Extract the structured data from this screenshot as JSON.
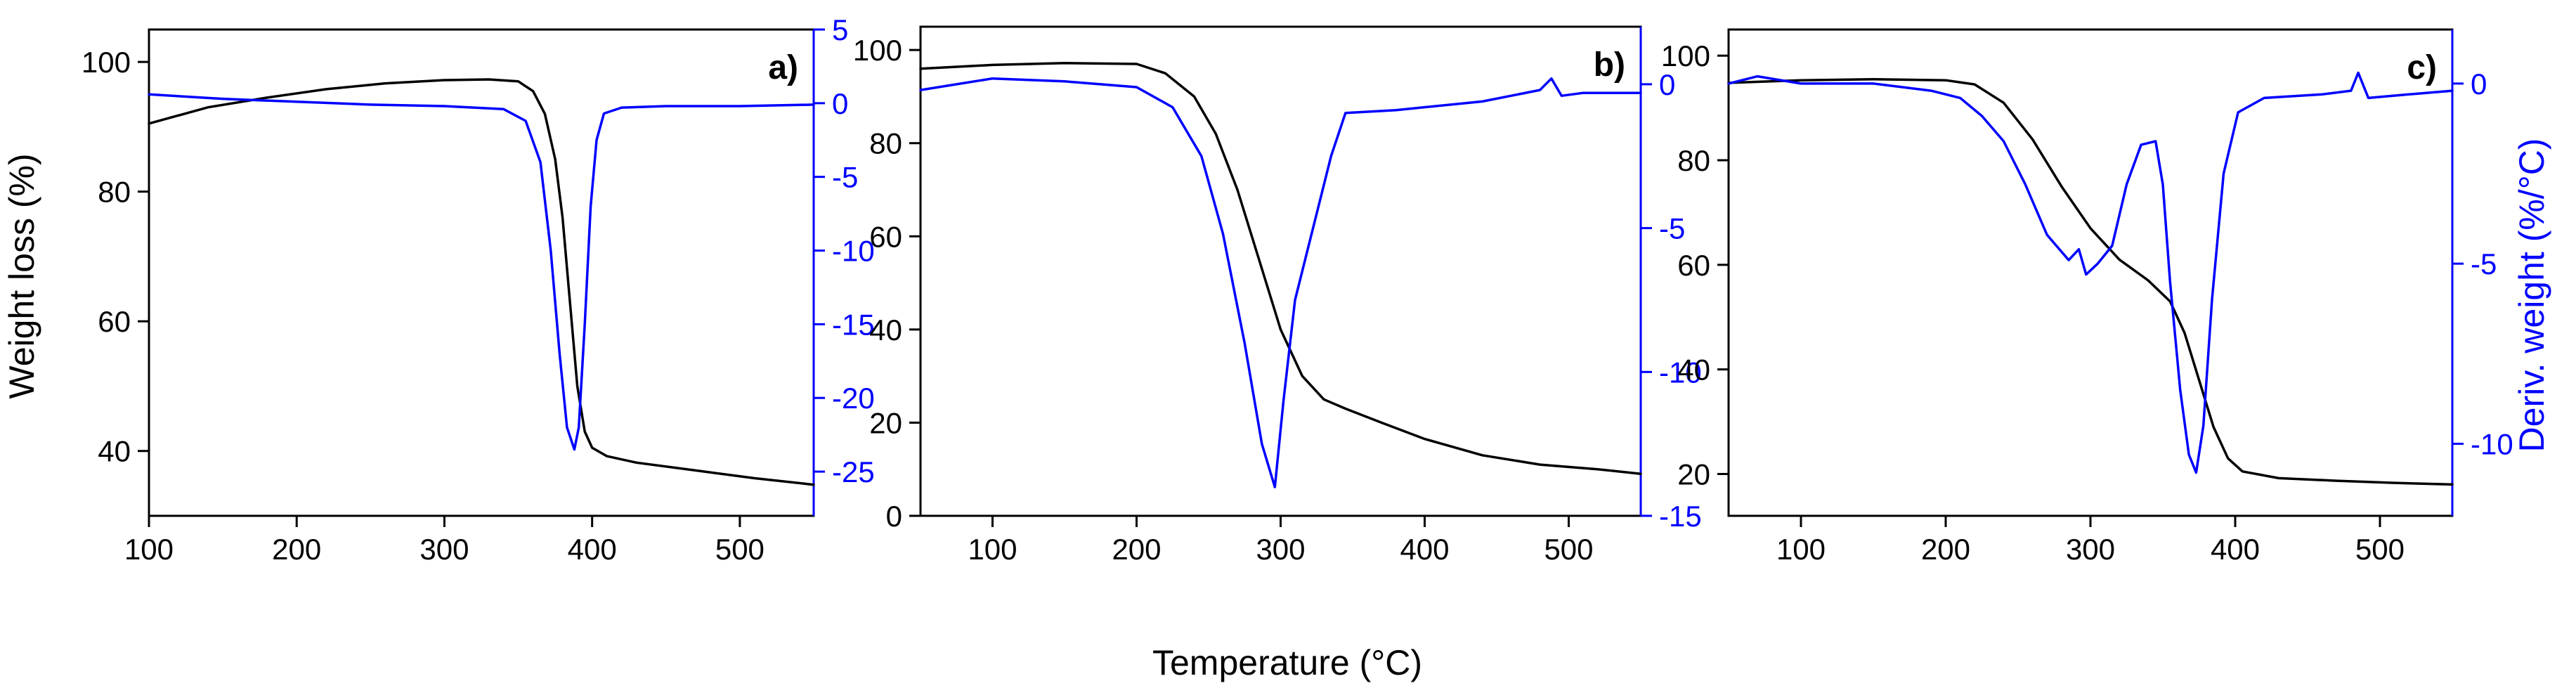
{
  "figure": {
    "shared_xlabel": "Temperature (°C)",
    "left_ylabel": "Weight loss (%)",
    "right_ylabel": "Deriv. weight (%/°C)"
  },
  "colors": {
    "weight": "#000000",
    "derivative": "#0000ff",
    "axis": "#000000"
  },
  "chart_data": [
    {
      "panel": "a)",
      "type": "line",
      "xlim": [
        100,
        550
      ],
      "xticks": [
        100,
        200,
        300,
        400,
        500
      ],
      "ylim_left": [
        30,
        105
      ],
      "yticks_left": [
        40,
        60,
        80,
        100
      ],
      "ylim_right": [
        -28,
        5
      ],
      "yticks_right": [
        5,
        0,
        -5,
        -10,
        -15,
        -20,
        -25
      ],
      "xlabel": "",
      "ylabel_left": "Weight loss (%)",
      "ylabel_right": "",
      "series": [
        {
          "name": "Weight loss",
          "axis": "left",
          "x": [
            100,
            140,
            180,
            220,
            260,
            300,
            330,
            350,
            360,
            368,
            375,
            380,
            385,
            390,
            395,
            400,
            410,
            430,
            470,
            510,
            550
          ],
          "y": [
            90.5,
            93,
            94.5,
            95.8,
            96.7,
            97.2,
            97.3,
            97,
            95.5,
            92,
            85,
            76,
            63,
            50,
            43,
            40.5,
            39.2,
            38.2,
            37,
            35.8,
            34.8
          ]
        },
        {
          "name": "Deriv. weight",
          "axis": "right",
          "x": [
            100,
            150,
            200,
            250,
            300,
            340,
            355,
            365,
            372,
            378,
            383,
            388,
            391,
            395,
            399,
            403,
            408,
            420,
            450,
            500,
            550
          ],
          "y": [
            0.6,
            0.3,
            0.1,
            -0.1,
            -0.2,
            -0.4,
            -1.2,
            -4,
            -10,
            -17,
            -22,
            -23.5,
            -22,
            -15,
            -7,
            -2.5,
            -0.7,
            -0.3,
            -0.2,
            -0.2,
            -0.1
          ]
        }
      ]
    },
    {
      "panel": "b)",
      "type": "line",
      "xlim": [
        50,
        550
      ],
      "xticks": [
        100,
        200,
        300,
        400,
        500
      ],
      "ylim_left": [
        0,
        105
      ],
      "yticks_left": [
        0,
        20,
        40,
        60,
        80,
        100
      ],
      "ylim_right": [
        -15,
        2
      ],
      "yticks_right": [
        0,
        -5,
        -10,
        -15
      ],
      "xlabel": "Temperature (°C)",
      "ylabel_left": "",
      "ylabel_right": "",
      "series": [
        {
          "name": "Weight loss",
          "axis": "left",
          "x": [
            50,
            100,
            150,
            200,
            220,
            240,
            255,
            270,
            285,
            300,
            315,
            330,
            345,
            370,
            400,
            440,
            480,
            520,
            550
          ],
          "y": [
            96,
            96.8,
            97.2,
            97,
            95,
            90,
            82,
            70,
            55,
            40,
            30,
            25,
            23,
            20,
            16.5,
            13,
            11,
            10,
            9
          ]
        },
        {
          "name": "Deriv. weight",
          "axis": "right",
          "x": [
            50,
            100,
            150,
            200,
            225,
            245,
            260,
            275,
            287,
            296,
            302,
            310,
            320,
            335,
            345,
            380,
            440,
            480,
            488,
            495,
            510,
            550
          ],
          "y": [
            -0.2,
            0.2,
            0.1,
            -0.1,
            -0.8,
            -2.5,
            -5.2,
            -9,
            -12.5,
            -14,
            -11,
            -7.5,
            -5.5,
            -2.5,
            -1,
            -0.9,
            -0.6,
            -0.2,
            0.2,
            -0.4,
            -0.3,
            -0.3
          ]
        }
      ]
    },
    {
      "panel": "c)",
      "type": "line",
      "xlim": [
        50,
        550
      ],
      "xticks": [
        100,
        200,
        300,
        400,
        500
      ],
      "ylim_left": [
        12,
        105
      ],
      "yticks_left": [
        20,
        40,
        60,
        80,
        100
      ],
      "ylim_right": [
        -12,
        1.5
      ],
      "yticks_right": [
        0,
        -5,
        -10
      ],
      "xlabel": "",
      "ylabel_left": "",
      "ylabel_right": "Deriv. weight (%/°C)",
      "series": [
        {
          "name": "Weight loss",
          "axis": "left",
          "x": [
            50,
            100,
            150,
            200,
            220,
            240,
            260,
            280,
            300,
            320,
            340,
            355,
            365,
            375,
            385,
            395,
            405,
            430,
            470,
            510,
            550
          ],
          "y": [
            94.8,
            95.3,
            95.5,
            95.3,
            94.5,
            91,
            84,
            75,
            67,
            61,
            57,
            53,
            47,
            38,
            29,
            23,
            20.5,
            19.2,
            18.7,
            18.3,
            18
          ]
        },
        {
          "name": "Deriv. weight",
          "axis": "right",
          "x": [
            50,
            70,
            100,
            150,
            190,
            210,
            225,
            240,
            255,
            270,
            285,
            292,
            297,
            305,
            315,
            325,
            335,
            345,
            350,
            355,
            362,
            368,
            373,
            378,
            384,
            392,
            402,
            420,
            460,
            480,
            485,
            492,
            520,
            550
          ],
          "y": [
            0,
            0.2,
            0,
            0,
            -0.2,
            -0.4,
            -0.9,
            -1.6,
            -2.8,
            -4.2,
            -4.9,
            -4.6,
            -5.3,
            -5,
            -4.5,
            -2.8,
            -1.7,
            -1.6,
            -2.8,
            -5.5,
            -8.5,
            -10.3,
            -10.8,
            -9.5,
            -6,
            -2.5,
            -0.8,
            -0.4,
            -0.3,
            -0.2,
            0.3,
            -0.4,
            -0.3,
            -0.2
          ]
        }
      ]
    }
  ]
}
